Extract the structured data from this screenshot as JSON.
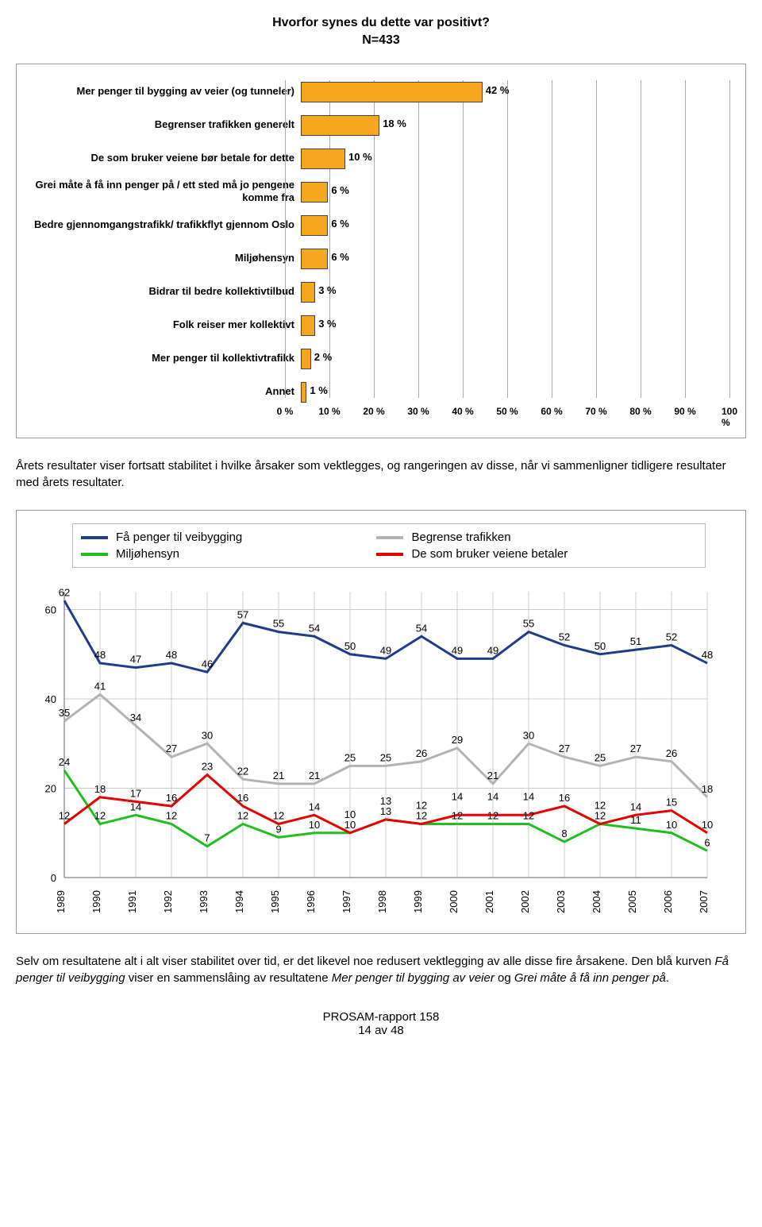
{
  "bar_chart": {
    "title": "Hvorfor synes du dette var positivt?",
    "subtitle": "N=433",
    "categories": [
      "Mer penger til bygging av veier (og tunneler)",
      "Begrenser trafikken generelt",
      "De som bruker veiene bør betale for dette",
      "Grei måte å få inn penger på / ett sted må jo pengene komme fra",
      "Bedre gjennomgangstrafikk/ trafikkflyt gjennom Oslo",
      "Miljøhensyn",
      "Bidrar til bedre kollektivtilbud",
      "Folk reiser mer kollektivt",
      "Mer penger til kollektivtrafikk",
      "Annet"
    ],
    "values": [
      42,
      18,
      10,
      6,
      6,
      6,
      3,
      3,
      2,
      1
    ],
    "value_labels": [
      "42 %",
      "18 %",
      "10 %",
      "6 %",
      "6 %",
      "6 %",
      "3 %",
      "3 %",
      "2 %",
      "1 %"
    ],
    "bar_color": "#f7a621",
    "bar_border": "#444444",
    "xmax": 100,
    "xticks": [
      0,
      10,
      20,
      30,
      40,
      50,
      60,
      70,
      80,
      90,
      100
    ],
    "xtick_labels": [
      "0 %",
      "10 %",
      "20 %",
      "30 %",
      "40 %",
      "50 %",
      "60 %",
      "70 %",
      "80 %",
      "90 %",
      "100 %"
    ],
    "grid_color": "#aaaaaa",
    "label_fontsize": 13,
    "value_fontsize": 13,
    "tick_fontsize": 12
  },
  "paragraph1": "Årets resultater viser fortsatt stabilitet i hvilke årsaker som vektlegges, og rangeringen av disse, når vi sammenligner tidligere resultater med årets resultater.",
  "line_chart": {
    "legend": [
      {
        "label": "Få penger til veibygging",
        "color": "#1f3c8a"
      },
      {
        "label": "Begrense trafikken",
        "color": "#b3b3b3"
      },
      {
        "label": "Miljøhensyn",
        "color": "#1fbf1f"
      },
      {
        "label": "De som bruker veiene betaler",
        "color": "#e60000"
      }
    ],
    "years": [
      1989,
      1990,
      1991,
      1992,
      1993,
      1994,
      1995,
      1996,
      1997,
      1998,
      1999,
      2000,
      2001,
      2002,
      2003,
      2004,
      2005,
      2006,
      2007
    ],
    "series": {
      "penger": [
        62,
        48,
        47,
        48,
        46,
        57,
        55,
        54,
        50,
        49,
        54,
        49,
        49,
        55,
        52,
        50,
        51,
        52,
        48
      ],
      "begrense": [
        35,
        41,
        34,
        27,
        30,
        22,
        21,
        21,
        25,
        25,
        26,
        29,
        21,
        30,
        27,
        25,
        27,
        26,
        18
      ],
      "miljo": [
        24,
        12,
        14,
        12,
        7,
        12,
        9,
        10,
        10,
        13,
        12,
        12,
        12,
        12,
        8,
        12,
        11,
        10,
        6
      ],
      "bruker": [
        12,
        18,
        17,
        16,
        23,
        16,
        12,
        14,
        10,
        13,
        12,
        14,
        14,
        14,
        16,
        12,
        14,
        15,
        10
      ]
    },
    "colors": {
      "penger": "#1f3c8a",
      "begrense": "#b3b3b3",
      "miljo": "#1fbf1f",
      "bruker": "#e60000"
    },
    "ymax": 64,
    "yticks": [
      0,
      20,
      40,
      60
    ],
    "line_width": 3,
    "label_fontsize": 13,
    "tick_fontsize": 13,
    "grid_color": "#cccccc",
    "background_color": "#ffffff"
  },
  "paragraph2_parts": {
    "a": "Selv om resultatene alt i alt viser stabilitet over tid, er det likevel noe redusert vektlegging av alle disse fire årsakene. Den blå kurven ",
    "b": "Få penger til veibygging",
    "c": " viser en sammenslåing av resultatene ",
    "d": "Mer penger til bygging av veier",
    "e": " og ",
    "f": "Grei måte å få inn penger på",
    "g": "."
  },
  "footer": {
    "report": "PROSAM-rapport 158",
    "page": "14 av 48"
  }
}
